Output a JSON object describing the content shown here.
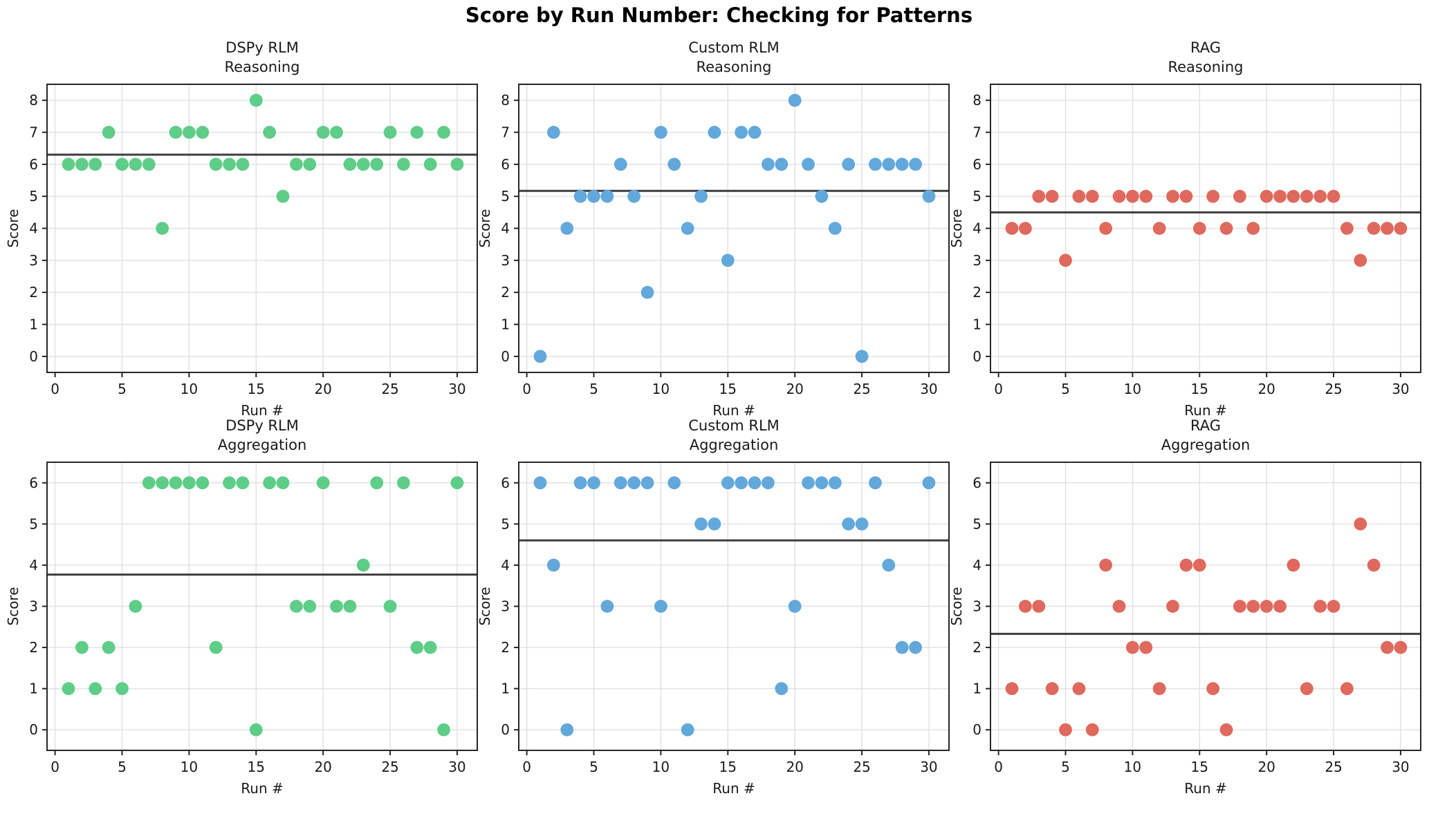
{
  "figure": {
    "title": "Score by Run Number: Checking for Patterns"
  },
  "chart_data": [
    {
      "type": "scatter",
      "title_line1": "DSPy RLM",
      "title_line2": "Reasoning",
      "xlabel": "Run #",
      "ylabel": "Score",
      "marker_color": "#5ecd87",
      "mean_line_color": "#3d3d3d",
      "grid": true,
      "x": [
        1,
        2,
        3,
        4,
        5,
        6,
        7,
        8,
        9,
        10,
        11,
        12,
        13,
        14,
        15,
        16,
        17,
        18,
        19,
        20,
        21,
        22,
        23,
        24,
        25,
        26,
        27,
        28,
        29,
        30
      ],
      "values": [
        6,
        6,
        6,
        7,
        6,
        6,
        6,
        4,
        7,
        7,
        7,
        6,
        6,
        6,
        8,
        7,
        5,
        6,
        6,
        7,
        7,
        6,
        6,
        6,
        7,
        6,
        7,
        6,
        7,
        6
      ],
      "mean": 6.3,
      "xticks": [
        0,
        5,
        10,
        15,
        20,
        25,
        30
      ],
      "yticks": [
        0,
        1,
        2,
        3,
        4,
        5,
        6,
        7,
        8
      ],
      "xlim": [
        -0.6,
        31.5
      ],
      "ylim": [
        -0.5,
        8.5
      ]
    },
    {
      "type": "scatter",
      "title_line1": "Custom RLM",
      "title_line2": "Reasoning",
      "xlabel": "Run #",
      "ylabel": "Score",
      "marker_color": "#63a8db",
      "mean_line_color": "#3d3d3d",
      "grid": true,
      "x": [
        1,
        2,
        3,
        4,
        5,
        6,
        7,
        8,
        9,
        10,
        11,
        12,
        13,
        14,
        15,
        16,
        17,
        18,
        19,
        20,
        21,
        22,
        23,
        24,
        25,
        26,
        27,
        28,
        29,
        30
      ],
      "values": [
        0,
        7,
        4,
        5,
        5,
        5,
        6,
        5,
        2,
        7,
        6,
        4,
        5,
        7,
        3,
        7,
        7,
        6,
        6,
        8,
        6,
        5,
        4,
        6,
        0,
        6,
        6,
        6,
        6,
        5
      ],
      "mean": 5.17,
      "xticks": [
        0,
        5,
        10,
        15,
        20,
        25,
        30
      ],
      "yticks": [
        0,
        1,
        2,
        3,
        4,
        5,
        6,
        7,
        8
      ],
      "xlim": [
        -0.6,
        31.5
      ],
      "ylim": [
        -0.5,
        8.5
      ]
    },
    {
      "type": "scatter",
      "title_line1": "RAG",
      "title_line2": "Reasoning",
      "xlabel": "Run #",
      "ylabel": "Score",
      "marker_color": "#e0695d",
      "mean_line_color": "#3d3d3d",
      "grid": true,
      "x": [
        1,
        2,
        3,
        4,
        5,
        6,
        7,
        8,
        9,
        10,
        11,
        12,
        13,
        14,
        15,
        16,
        17,
        18,
        19,
        20,
        21,
        22,
        23,
        24,
        25,
        26,
        27,
        28,
        29,
        30
      ],
      "values": [
        4,
        4,
        5,
        5,
        3,
        5,
        5,
        4,
        5,
        5,
        5,
        4,
        5,
        5,
        4,
        5,
        4,
        5,
        4,
        5,
        5,
        5,
        5,
        5,
        5,
        4,
        3,
        4,
        4,
        4
      ],
      "mean": 4.5,
      "xticks": [
        0,
        5,
        10,
        15,
        20,
        25,
        30
      ],
      "yticks": [
        0,
        1,
        2,
        3,
        4,
        5,
        6,
        7,
        8
      ],
      "xlim": [
        -0.6,
        31.5
      ],
      "ylim": [
        -0.5,
        8.5
      ]
    },
    {
      "type": "scatter",
      "title_line1": "DSPy RLM",
      "title_line2": "Aggregation",
      "xlabel": "Run #",
      "ylabel": "Score",
      "marker_color": "#5ecd87",
      "mean_line_color": "#3d3d3d",
      "grid": true,
      "x": [
        1,
        2,
        3,
        4,
        5,
        6,
        7,
        8,
        9,
        10,
        11,
        12,
        13,
        14,
        15,
        16,
        17,
        18,
        19,
        20,
        21,
        22,
        23,
        24,
        25,
        26,
        27,
        28,
        29,
        30
      ],
      "values": [
        1,
        2,
        1,
        2,
        1,
        3,
        6,
        6,
        6,
        6,
        6,
        2,
        6,
        6,
        0,
        6,
        6,
        3,
        3,
        6,
        3,
        3,
        4,
        6,
        3,
        6,
        2,
        2,
        0,
        6
      ],
      "mean": 3.77,
      "xticks": [
        0,
        5,
        10,
        15,
        20,
        25,
        30
      ],
      "yticks": [
        0,
        1,
        2,
        3,
        4,
        5,
        6
      ],
      "xlim": [
        -0.6,
        31.5
      ],
      "ylim": [
        -0.5,
        6.5
      ]
    },
    {
      "type": "scatter",
      "title_line1": "Custom RLM",
      "title_line2": "Aggregation",
      "xlabel": "Run #",
      "ylabel": "Score",
      "marker_color": "#63a8db",
      "mean_line_color": "#3d3d3d",
      "grid": true,
      "x": [
        1,
        2,
        3,
        4,
        5,
        6,
        7,
        8,
        9,
        10,
        11,
        12,
        13,
        14,
        15,
        16,
        17,
        18,
        19,
        20,
        21,
        22,
        23,
        24,
        25,
        26,
        27,
        28,
        29,
        30
      ],
      "values": [
        6,
        4,
        0,
        6,
        6,
        3,
        6,
        6,
        6,
        3,
        6,
        0,
        5,
        5,
        6,
        6,
        6,
        6,
        1,
        3,
        6,
        6,
        6,
        5,
        5,
        6,
        4,
        2,
        2,
        6
      ],
      "mean": 4.6,
      "xticks": [
        0,
        5,
        10,
        15,
        20,
        25,
        30
      ],
      "yticks": [
        0,
        1,
        2,
        3,
        4,
        5,
        6
      ],
      "xlim": [
        -0.6,
        31.5
      ],
      "ylim": [
        -0.5,
        6.5
      ]
    },
    {
      "type": "scatter",
      "title_line1": "RAG",
      "title_line2": "Aggregation",
      "xlabel": "Run #",
      "ylabel": "Score",
      "marker_color": "#e0695d",
      "mean_line_color": "#3d3d3d",
      "grid": true,
      "x": [
        1,
        2,
        3,
        4,
        5,
        6,
        7,
        8,
        9,
        10,
        11,
        12,
        13,
        14,
        15,
        16,
        17,
        18,
        19,
        20,
        21,
        22,
        23,
        24,
        25,
        26,
        27,
        28,
        29,
        30
      ],
      "values": [
        1,
        3,
        3,
        1,
        0,
        1,
        0,
        4,
        3,
        2,
        2,
        1,
        3,
        4,
        4,
        1,
        0,
        3,
        3,
        3,
        3,
        4,
        1,
        3,
        3,
        1,
        5,
        4,
        2,
        2
      ],
      "mean": 2.33,
      "xticks": [
        0,
        5,
        10,
        15,
        20,
        25,
        30
      ],
      "yticks": [
        0,
        1,
        2,
        3,
        4,
        5,
        6
      ],
      "xlim": [
        -0.6,
        31.5
      ],
      "ylim": [
        -0.5,
        6.5
      ]
    }
  ]
}
